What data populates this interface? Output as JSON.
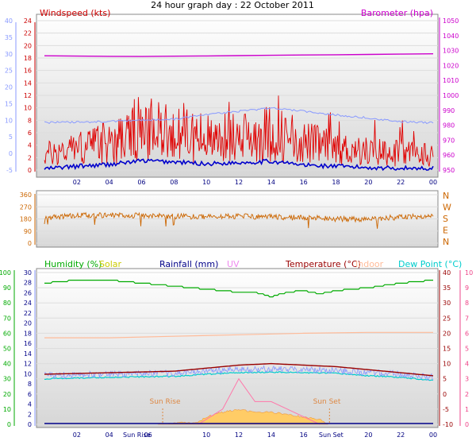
{
  "title": "24 hour graph day : 22 October 2011",
  "colors": {
    "wind": "#e00000",
    "wind_avg": "#0000cc",
    "baro": "#cc00cc",
    "temp_blue": "#8899ff",
    "dir": "#cc6600",
    "humidity": "#00aa00",
    "solar": "#cccc00",
    "rainfall": "#000088",
    "uv": "#ee88ee",
    "temperature": "#990000",
    "indoor": "#ffbb99",
    "dew": "#00cccc",
    "pink_axis": "#ee4488",
    "sun_label": "#dd8844",
    "solar_fill": "#ffcc66",
    "uv_line": "#ff77aa"
  },
  "chart_data": [
    {
      "type": "line",
      "panel": "wind-baro",
      "left_axis_title": "Windspeed (kts)",
      "right_axis_title": "Barometer (hpa)",
      "left_ticks_red": [
        "24",
        "22",
        "20",
        "18",
        "16",
        "14",
        "12",
        "10",
        "8",
        "6",
        "4",
        "2",
        "0"
      ],
      "left_ticks_blue": [
        "40",
        "35",
        "30",
        "25",
        "20",
        "15",
        "10",
        "5",
        "0",
        "-5"
      ],
      "right_ticks": [
        "1050",
        "1040",
        "1030",
        "1020",
        "1010",
        "1000",
        "990",
        "980",
        "970",
        "960",
        "950"
      ],
      "x_ticks": [
        "02",
        "04",
        "06",
        "08",
        "10",
        "12",
        "14",
        "16",
        "18",
        "20",
        "22",
        "00"
      ],
      "series": [
        {
          "name": "Barometer (hpa)",
          "x": [
            0,
            2,
            4,
            6,
            8,
            10,
            12,
            14,
            16,
            18,
            20,
            22,
            24
          ],
          "values": [
            1026.5,
            1026.3,
            1026.1,
            1026.0,
            1026.2,
            1026.4,
            1026.6,
            1026.8,
            1027.0,
            1027.2,
            1027.4,
            1027.6,
            1027.8
          ]
        },
        {
          "x": [
            0,
            2,
            4,
            6,
            8,
            10,
            12,
            14,
            16,
            18,
            20,
            22,
            24
          ],
          "values": [
            9.3,
            9.4,
            9.6,
            10.0,
            10.3,
            11.6,
            12.7,
            13.7,
            12.7,
            11.6,
            10.7,
            9.6,
            9.2
          ]
        },
        {
          "x": [
            0,
            2,
            4,
            6,
            8,
            10,
            12,
            14,
            16,
            18,
            20,
            22,
            24
          ],
          "values": [
            0.2,
            0.6,
            0.9,
            1.5,
            1.3,
            1.0,
            1.2,
            1.4,
            0.8,
            0.6,
            0.4,
            0.3,
            0.3
          ]
        },
        {
          "x": [
            0,
            2,
            4,
            6,
            8,
            10,
            12,
            14,
            16,
            18,
            20,
            22,
            24
          ],
          "values": [
            2.5,
            3.5,
            4.5,
            6.0,
            6.5,
            5.0,
            5.2,
            6.0,
            4.5,
            3.5,
            3.0,
            2.8,
            2.5
          ]
        }
      ]
    },
    {
      "type": "line",
      "panel": "direction",
      "left_ticks": [
        "360",
        "270",
        "180",
        "90",
        "0"
      ],
      "right_labels": [
        "N",
        "W",
        "S",
        "E",
        "N"
      ],
      "series": [
        {
          "x": [
            0,
            2,
            4,
            6,
            8,
            10,
            12,
            14,
            16,
            18,
            20,
            22,
            24
          ],
          "values": [
            190,
            205,
            210,
            205,
            200,
            195,
            200,
            195,
            190,
            180,
            175,
            195,
            200
          ]
        }
      ]
    },
    {
      "type": "line",
      "panel": "temp-humidity",
      "legend": [
        "Humidity (%)",
        "Solar",
        "Rainfall (mm)",
        "UV",
        "Temperature (°C)",
        "Indoor",
        "Dew Point (°C)"
      ],
      "left_ticks_green": [
        "100",
        "90",
        "80",
        "70",
        "60",
        "50",
        "40",
        "30",
        "20",
        "10",
        "0"
      ],
      "left_ticks_blue": [
        "30",
        "28",
        "26",
        "24",
        "22",
        "20",
        "18",
        "16",
        "14",
        "12",
        "10",
        "8",
        "6",
        "4",
        "2",
        "0"
      ],
      "right_ticks_red": [
        "40",
        "35",
        "30",
        "25",
        "20",
        "15",
        "10",
        "5",
        "0",
        "-5",
        "-10"
      ],
      "right_ticks_pink": [
        "10",
        "9",
        "8",
        "7",
        "6",
        "5",
        "4",
        "3",
        "2",
        "1",
        "0"
      ],
      "x_ticks": [
        "02",
        "04",
        "Sun Rise",
        "06",
        "10",
        "12",
        "14",
        "16",
        "Sun Set",
        "20",
        "22",
        "00"
      ],
      "annotations": [
        "Sun Rise",
        "Sun Set"
      ],
      "series": [
        {
          "name": "Humidity (%)",
          "x": [
            0,
            2,
            4,
            6,
            8,
            10,
            12,
            13,
            14,
            15,
            16,
            17,
            18,
            20,
            22,
            24
          ],
          "values": [
            93,
            95,
            95,
            93,
            91,
            89,
            87,
            87,
            84,
            87,
            88,
            86,
            88,
            90,
            93,
            95
          ]
        },
        {
          "name": "Indoor",
          "x": [
            0,
            4,
            8,
            12,
            16,
            20,
            24
          ],
          "values": [
            18.5,
            18.5,
            19.0,
            19.5,
            20.0,
            20.3,
            20.3
          ]
        },
        {
          "name": "Temperature (°C)",
          "x": [
            0,
            4,
            8,
            10,
            12,
            14,
            16,
            18,
            20,
            22,
            24
          ],
          "values": [
            6.5,
            7.0,
            7.5,
            8.5,
            9.5,
            10.0,
            9.5,
            9.0,
            8.0,
            7.0,
            6.0
          ]
        },
        {
          "name": "Dew Point (°C)",
          "x": [
            0,
            4,
            8,
            10,
            12,
            14,
            16,
            18,
            20,
            22,
            24
          ],
          "values": [
            5.0,
            5.5,
            5.8,
            6.5,
            7.0,
            7.2,
            7.0,
            6.8,
            6.0,
            5.5,
            4.5
          ]
        },
        {
          "name": "Solar",
          "x": [
            7.0,
            9.5,
            10,
            11,
            12,
            13,
            14,
            15,
            16,
            17,
            17.5
          ],
          "values": [
            0,
            0.4,
            1.2,
            2.0,
            2.4,
            2.0,
            2.0,
            1.6,
            1.2,
            0.8,
            0
          ]
        },
        {
          "name": "UV",
          "x": [
            9.5,
            11,
            12,
            13,
            14,
            15,
            16,
            17
          ],
          "values": [
            0,
            1,
            3,
            1.5,
            1.5,
            1,
            0.5,
            0
          ]
        },
        {
          "name": "Rainfall (mm)",
          "x": [
            0,
            24
          ],
          "values": [
            0,
            0
          ]
        }
      ]
    }
  ]
}
